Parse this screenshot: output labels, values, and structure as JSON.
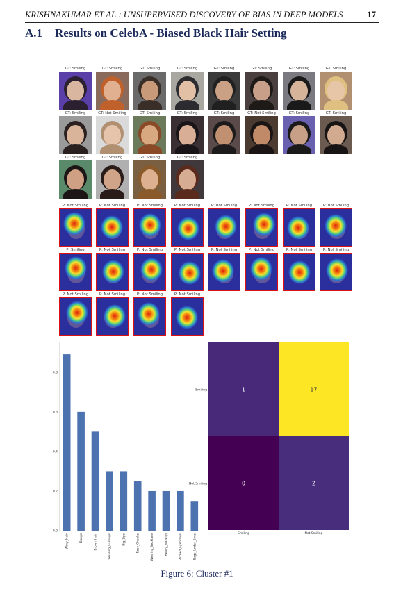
{
  "header": {
    "running_title": "KRISHNAKUMAR ET AL.: UNSUPERVISED DISCOVERY OF BIAS IN DEEP MODELS",
    "page_number": "17"
  },
  "section": {
    "number": "A.1",
    "title": "Results on CelebA - Biased Black Hair Setting"
  },
  "image_grid": {
    "gt_labels": [
      "GT: Smiling",
      "GT: Smiling",
      "GT: Smiling",
      "GT: Smiling",
      "GT: Smiling",
      "GT: Smiling",
      "GT: Smiling",
      "GT: Smiling",
      "GT: Smiling",
      "GT: Not Smiling",
      "GT: Smiling",
      "GT: Smiling",
      "GT: Smiling",
      "GT: Not Smiling",
      "GT: Smiling",
      "GT: Smiling",
      "GT: Smiling",
      "GT: Smiling",
      "GT: Smiling",
      "GT: Smiling"
    ],
    "pred_labels": [
      "P: Not Smiling",
      "P: Not Smiling",
      "P: Not Smiling",
      "P: Not Smiling",
      "P: Not Smiling",
      "P: Not Smiling",
      "P: Not Smiling",
      "P: Not Smiling",
      "P: Smiling",
      "P: Not Smiling",
      "P: Not Smiling",
      "P: Not Smiling",
      "P: Not Smiling",
      "P: Not Smiling",
      "P: Not Smiling",
      "P: Not Smiling",
      "P: Not Smiling",
      "P: Not Smiling",
      "P: Not Smiling",
      "P: Not Smiling"
    ],
    "face_colors": [
      [
        "#5a3fa8",
        "#d8b6a0",
        "#2a2030"
      ],
      [
        "#8a6b5b",
        "#e0b090",
        "#c0602a"
      ],
      [
        "#6a6a6a",
        "#c99a7a",
        "#3a2e28"
      ],
      [
        "#a8a8a0",
        "#e2c0a6",
        "#2c2c30"
      ],
      [
        "#3a3a3a",
        "#caa184",
        "#202020"
      ],
      [
        "#4a4040",
        "#c8a08a",
        "#1e1a18"
      ],
      [
        "#7a7a80",
        "#d5b49a",
        "#1a1a1a"
      ],
      [
        "#b09070",
        "#e6c6a6",
        "#e0c080"
      ],
      [
        "#9a9a9a",
        "#d9b49a",
        "#2a2020"
      ],
      [
        "#dadada",
        "#e6c4ac",
        "#b09070"
      ],
      [
        "#6a7a5a",
        "#d8a880",
        "#8a4a28"
      ],
      [
        "#3a3034",
        "#d8ae96",
        "#181418"
      ],
      [
        "#5a4a4a",
        "#c09070",
        "#1c1a1a"
      ],
      [
        "#4a3a30",
        "#c08a68",
        "#1a1414"
      ],
      [
        "#6a60b0",
        "#c8a088",
        "#1a1a1a"
      ],
      [
        "#6a5a50",
        "#d2aa90",
        "#181414"
      ],
      [
        "#5a8a6a",
        "#d0a084",
        "#1c1616"
      ],
      [
        "#b0b0b0",
        "#cfa488",
        "#2a1c18"
      ],
      [
        "#7a6040",
        "#dcb090",
        "#8a5a2a"
      ],
      [
        "#40383a",
        "#d6ac92",
        "#5a2a1c"
      ]
    ]
  },
  "chart_data": [
    {
      "type": "bar",
      "categories": [
        "Wavy_Hair",
        "Bangs",
        "Brown_Hair",
        "Wearing_Earrings",
        "Big_Lips",
        "Rosy_Cheeks",
        "Wearing_Necklace",
        "Heavy_Makeup",
        "Arched_Eyebrows",
        "Bags_Under_Eyes"
      ],
      "values": [
        0.89,
        0.6,
        0.5,
        0.3,
        0.3,
        0.25,
        0.2,
        0.2,
        0.2,
        0.15
      ],
      "ylim": [
        0,
        0.95
      ],
      "yticks": [
        "0.0",
        "0.2",
        "0.4",
        "0.6",
        "0.8"
      ],
      "ytick_values": [
        0,
        0.2,
        0.4,
        0.6,
        0.8
      ],
      "bar_color": "#4c72b0",
      "grid": false
    },
    {
      "type": "heatmap",
      "row_labels": [
        "Smiling",
        "Not Smiling"
      ],
      "col_labels": [
        "Smiling",
        "Not Smiling"
      ],
      "values": [
        [
          1,
          17
        ],
        [
          0,
          2
        ]
      ],
      "colors": [
        [
          "#482878",
          "#fde725"
        ],
        [
          "#440154",
          "#472d7b"
        ]
      ]
    }
  ],
  "caption": "Figure 6: Cluster #1"
}
